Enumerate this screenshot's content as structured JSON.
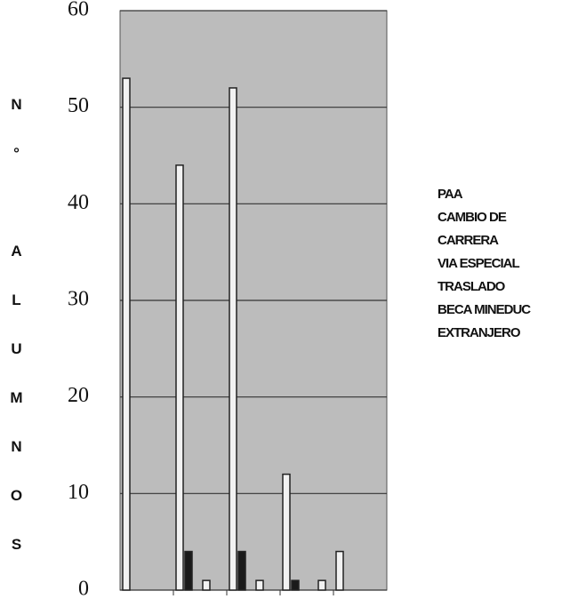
{
  "chart_data": {
    "type": "bar",
    "ylabel": "N° ALUMNOS",
    "categories": [
      null,
      null,
      null,
      null,
      null
    ],
    "series": [
      {
        "name": "PAA",
        "color": "#f2f2f2",
        "values": [
          53,
          44,
          52,
          12,
          4
        ]
      },
      {
        "name": "CAMBIO DE CARRERA",
        "color": "#1a1a1a",
        "values": [
          0,
          4,
          4,
          1,
          0
        ]
      },
      {
        "name": "VIA ESPECIAL",
        "color": "#f2f2f2",
        "values": [
          0,
          0,
          0,
          0,
          0
        ]
      },
      {
        "name": "TRASLADO",
        "color": "#f2f2f2",
        "values": [
          0,
          1,
          1,
          0,
          0
        ]
      },
      {
        "name": "BECA MINEDUC",
        "color": "#f2f2f2",
        "values": [
          0,
          0,
          0,
          1,
          0
        ]
      },
      {
        "name": "EXTRANJERO",
        "color": "#1a1a1a",
        "values": [
          0,
          0,
          0,
          0,
          0
        ]
      }
    ],
    "ylim": [
      0,
      60
    ],
    "yticks": [
      0,
      10,
      20,
      30,
      40,
      50,
      60
    ],
    "grid": true
  }
}
